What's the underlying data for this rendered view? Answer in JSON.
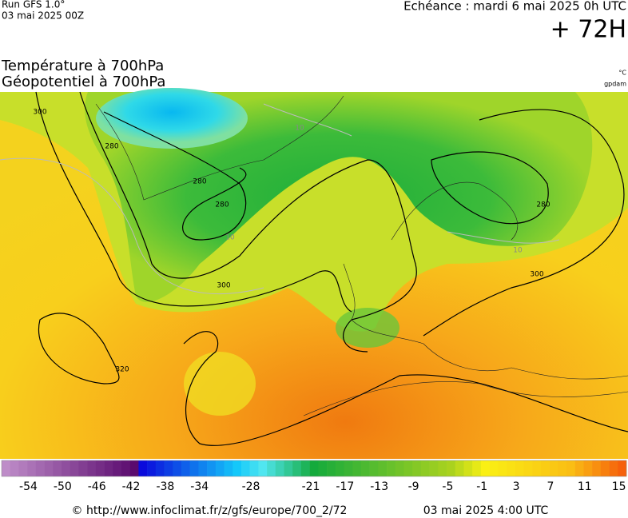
{
  "header": {
    "run": "Run GFS 1.0°",
    "run_date": "03 mai 2025 00Z",
    "valid": "Echéance : mardi 6 mai 2025 0h UTC",
    "lead": "+ 72H"
  },
  "titles": [
    "Température à 700hPa",
    "Géopotentiel à 700hPa"
  ],
  "units": [
    "°C",
    "gpdam"
  ],
  "contour_labels": [
    "300",
    "280",
    "280",
    "280",
    "300",
    "320",
    "300",
    "280",
    "10",
    "10",
    "10"
  ],
  "colorbar": {
    "ticks": [
      -54,
      -50,
      -46,
      -42,
      -38,
      -34,
      -28,
      -21,
      -17,
      -13,
      -9,
      -5,
      -1,
      3,
      7,
      11,
      15
    ]
  },
  "footer": {
    "credit": "© http://www.infoclimat.fr/z/gfs/europe/700_2/72",
    "issued": "03 mai 2025  4:00 UTC"
  }
}
